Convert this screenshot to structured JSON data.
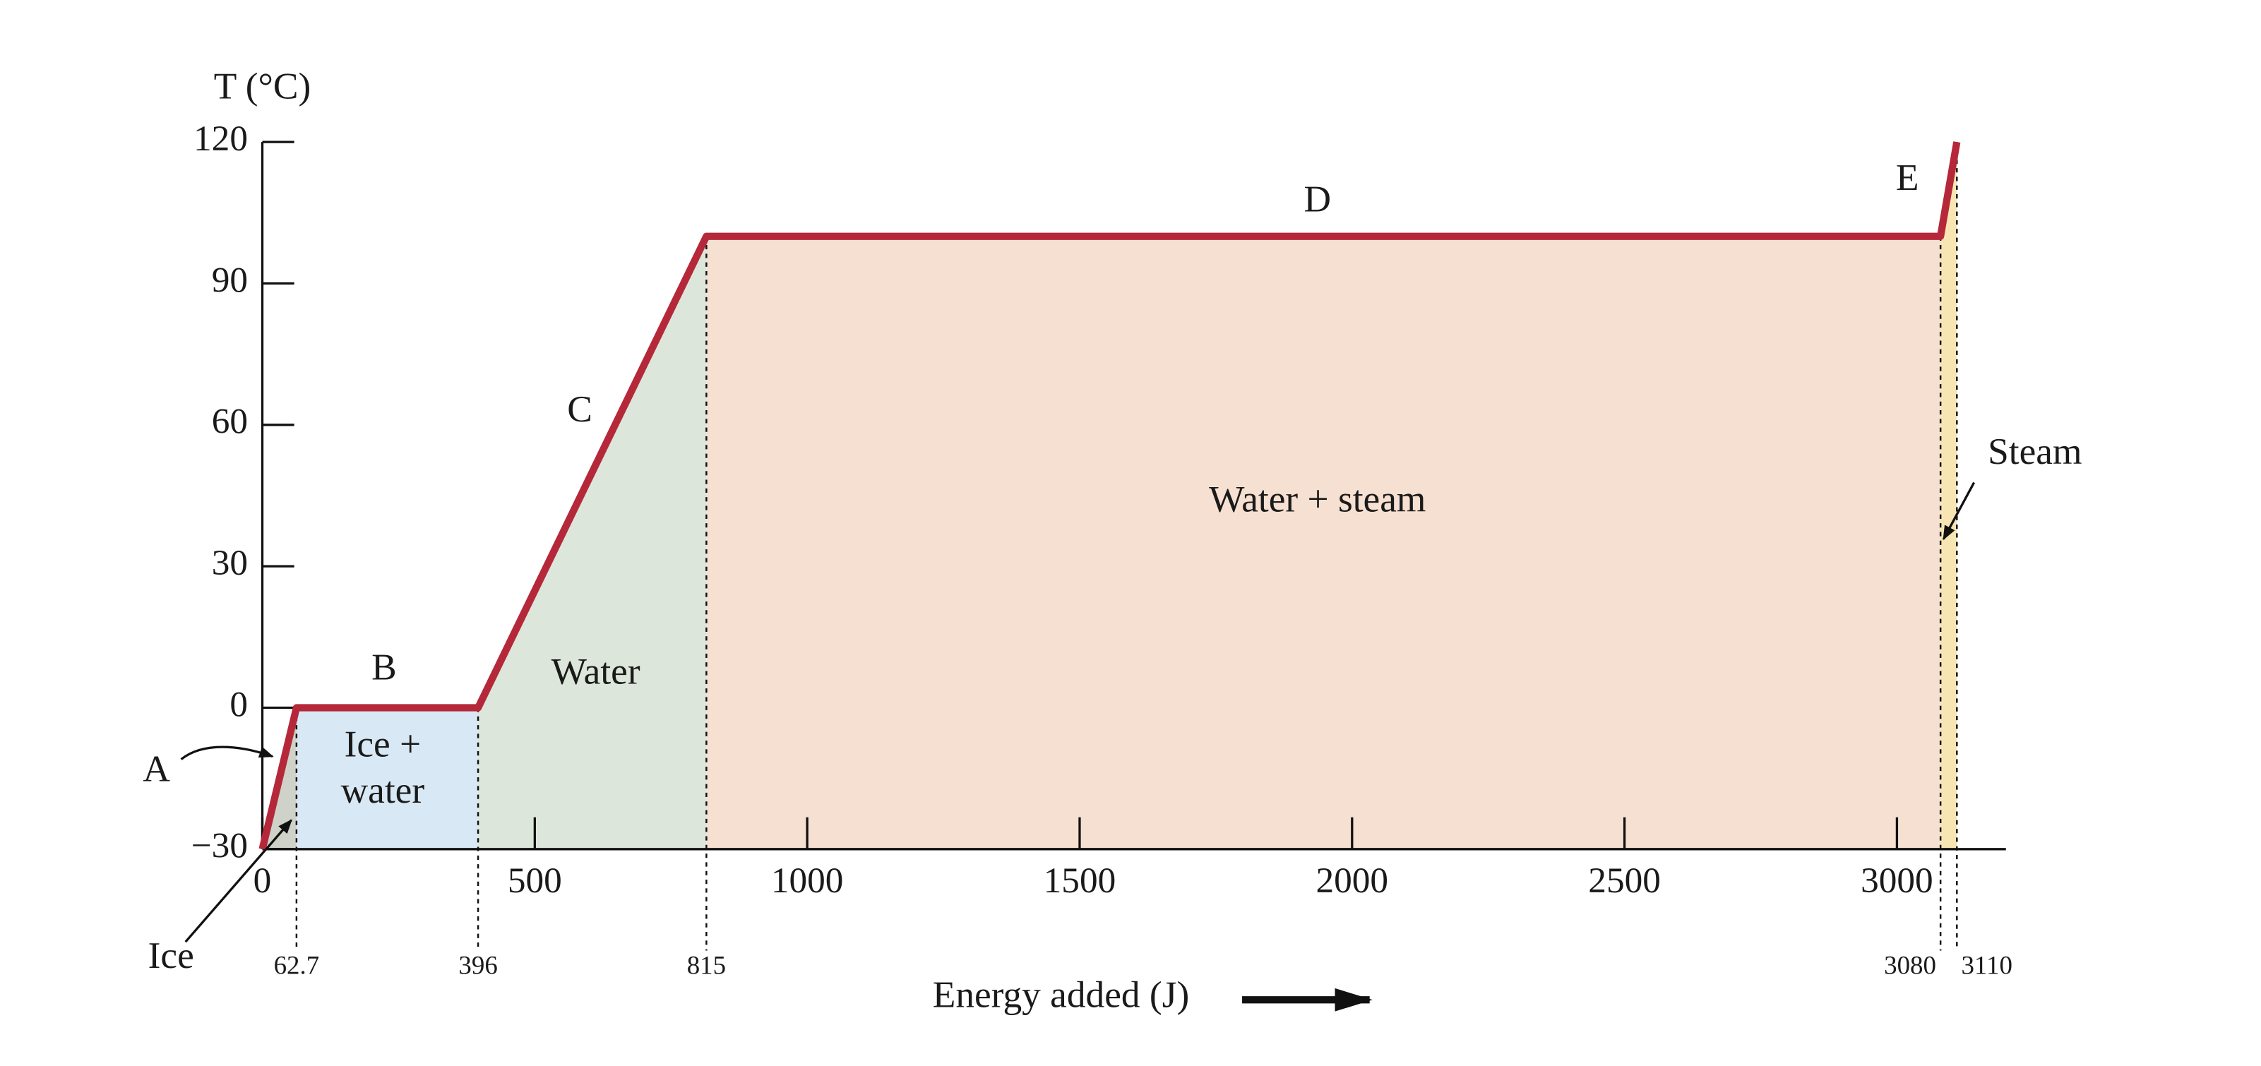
{
  "chart_data": {
    "type": "line",
    "x_label": "Energy added (J)",
    "y_label": "T (°C)",
    "x": [
      0,
      62.7,
      396,
      815,
      3080,
      3110
    ],
    "values": [
      -30,
      0,
      0,
      100,
      100,
      120
    ],
    "color": "#b5283a",
    "xlim": [
      0,
      3200
    ],
    "ylim": [
      -30,
      120
    ],
    "xticks": [
      0,
      500,
      1000,
      1500,
      2000,
      2500,
      3000
    ],
    "yticks": [
      {
        "value": -30,
        "label": "−30"
      },
      0,
      30,
      60,
      90,
      120
    ],
    "segment_labels": [
      "A",
      "B",
      "C",
      "D",
      "E"
    ],
    "region_labels": [
      "Ice",
      "Ice + water",
      "Water",
      "Water + steam",
      "Steam"
    ],
    "region_colors": [
      "#cfd2c8",
      "#d9e8f5",
      "#dde6da",
      "#f6e0d2",
      "#f7e6b3"
    ]
  }
}
